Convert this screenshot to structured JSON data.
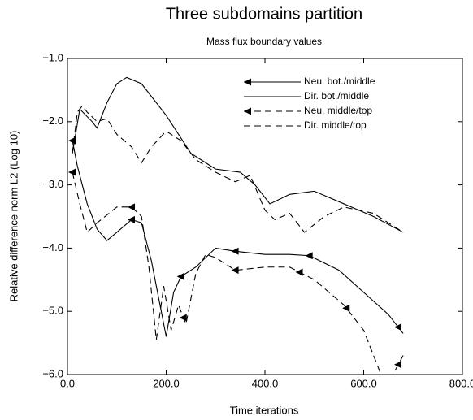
{
  "chart_data": {
    "type": "line",
    "title": "Three subdomains partition",
    "subtitle": "Mass flux boundary values",
    "x_label": "Time iterations",
    "y_label": "Relative difference norm L2 (Log 10)",
    "xlim": [
      0,
      800
    ],
    "ylim": [
      -6,
      -1
    ],
    "xticks": [
      {
        "value": 0,
        "label": "0.0"
      },
      {
        "value": 200,
        "label": "200.0"
      },
      {
        "value": 400,
        "label": "400.0"
      },
      {
        "value": 600,
        "label": "600.0"
      },
      {
        "value": 800,
        "label": "800.0"
      }
    ],
    "yticks": [
      {
        "value": -1,
        "label": "−1.0"
      },
      {
        "value": -2,
        "label": "−2.0"
      },
      {
        "value": -3,
        "label": "−3.0"
      },
      {
        "value": -4,
        "label": "−4.0"
      },
      {
        "value": -5,
        "label": "−5.0"
      },
      {
        "value": -6,
        "label": "−6.0"
      }
    ],
    "legend": "upper right",
    "series": [
      {
        "name": "Neu. bot./middle",
        "color": "#000000",
        "dash": "solid",
        "marker": "triangle-left",
        "x": [
          10,
          20,
          40,
          60,
          80,
          100,
          130,
          150,
          170,
          190,
          200,
          215,
          230,
          260,
          300,
          340,
          400,
          450,
          490,
          550,
          600,
          650,
          680
        ],
        "values": [
          -2.3,
          -2.7,
          -3.3,
          -3.7,
          -3.88,
          -3.75,
          -3.55,
          -3.6,
          -4.2,
          -5.0,
          -5.4,
          -4.7,
          -4.45,
          -4.3,
          -4.0,
          -4.05,
          -4.1,
          -4.1,
          -4.12,
          -4.35,
          -4.7,
          -5.05,
          -5.35
        ],
        "marker_x": [
          10,
          130,
          230,
          340,
          490,
          670
        ]
      },
      {
        "name": "Dir. bot./middle",
        "color": "#000000",
        "dash": "solid",
        "x": [
          10,
          25,
          50,
          60,
          80,
          100,
          120,
          150,
          200,
          250,
          300,
          350,
          380,
          410,
          450,
          500,
          560,
          620,
          680
        ],
        "values": [
          -2.5,
          -1.8,
          -2.0,
          -2.1,
          -1.7,
          -1.4,
          -1.3,
          -1.4,
          -1.9,
          -2.5,
          -2.75,
          -2.8,
          -3.0,
          -3.3,
          -3.15,
          -3.1,
          -3.3,
          -3.5,
          -3.75
        ]
      },
      {
        "name": "Neu. middle/top",
        "color": "#000000",
        "dash": "dashed",
        "marker": "triangle-left",
        "x": [
          10,
          25,
          40,
          60,
          100,
          130,
          150,
          165,
          180,
          195,
          210,
          225,
          240,
          260,
          280,
          300,
          340,
          400,
          450,
          500,
          560,
          600,
          630,
          645,
          680
        ],
        "values": [
          -2.8,
          -3.3,
          -3.75,
          -3.6,
          -3.35,
          -3.35,
          -3.5,
          -4.3,
          -5.45,
          -4.6,
          -5.3,
          -4.9,
          -5.2,
          -4.4,
          -4.1,
          -4.15,
          -4.35,
          -4.3,
          -4.3,
          -4.5,
          -4.9,
          -5.3,
          -5.9,
          -6.2,
          -5.7
        ],
        "marker_x": [
          10,
          130,
          235,
          340,
          470,
          565,
          670
        ]
      },
      {
        "name": "Dir. middle/top",
        "color": "#000000",
        "dash": "dashed",
        "x": [
          10,
          20,
          30,
          40,
          60,
          80,
          100,
          130,
          150,
          170,
          200,
          230,
          260,
          300,
          340,
          370,
          400,
          420,
          450,
          480,
          520,
          560,
          620,
          680
        ],
        "values": [
          -2.5,
          -1.85,
          -1.75,
          -1.85,
          -2.0,
          -1.95,
          -2.2,
          -2.4,
          -2.65,
          -2.4,
          -2.15,
          -2.3,
          -2.6,
          -2.8,
          -2.95,
          -2.85,
          -3.4,
          -3.55,
          -3.45,
          -3.75,
          -3.5,
          -3.35,
          -3.45,
          -3.75
        ]
      }
    ]
  }
}
